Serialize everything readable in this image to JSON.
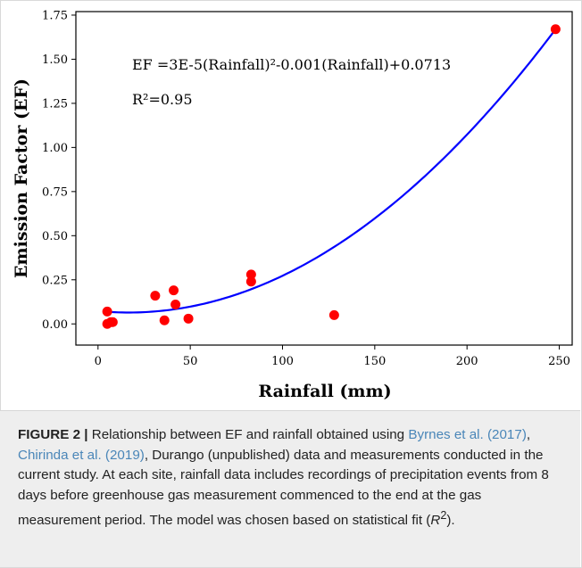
{
  "chart_data": {
    "type": "scatter",
    "xlabel": "Rainfall (mm)",
    "ylabel": "Emission Factor (EF)",
    "xlim": [
      -12,
      257
    ],
    "ylim": [
      -0.12,
      1.77
    ],
    "xticks": [
      0,
      50,
      100,
      150,
      200,
      250
    ],
    "yticks": [
      0.0,
      0.25,
      0.5,
      0.75,
      1.0,
      1.25,
      1.5,
      1.75
    ],
    "grid": false,
    "points": [
      {
        "x": 5,
        "y": 0.07
      },
      {
        "x": 5,
        "y": 0.0
      },
      {
        "x": 7,
        "y": 0.01
      },
      {
        "x": 8,
        "y": 0.01
      },
      {
        "x": 31,
        "y": 0.16
      },
      {
        "x": 36,
        "y": 0.02
      },
      {
        "x": 41,
        "y": 0.19
      },
      {
        "x": 42,
        "y": 0.11
      },
      {
        "x": 49,
        "y": 0.03
      },
      {
        "x": 83,
        "y": 0.28
      },
      {
        "x": 83,
        "y": 0.24
      },
      {
        "x": 128,
        "y": 0.05
      },
      {
        "x": 248,
        "y": 1.67
      }
    ],
    "point_color": "#ff0000",
    "fit": {
      "x_range": [
        5,
        248
      ],
      "coefficients": {
        "a": 3e-05,
        "b": -0.001,
        "c": 0.0713
      },
      "color": "#0000ff"
    },
    "annotations": {
      "equation": "EF =3E-5(Rainfall)²-0.001(Rainfall)+0.0713",
      "r_squared": "R²=0.95"
    }
  },
  "caption": {
    "label": "FIGURE 2 |",
    "text_1": " Relationship between EF and rainfall obtained using ",
    "ref_1": "Byrnes et al. (2017)",
    "text_2": ", ",
    "ref_2": "Chirinda et al. (2019)",
    "text_3": ", Durango (unpublished) data and measurements conducted in the current study. At each site, rainfall data includes recordings of precipitation events from 8 days before greenhouse gas measurement commenced to the end at the gas measurement period. The model was chosen based on statistical fit (",
    "italic": "R",
    "superscript": "2",
    "text_4": ")."
  }
}
